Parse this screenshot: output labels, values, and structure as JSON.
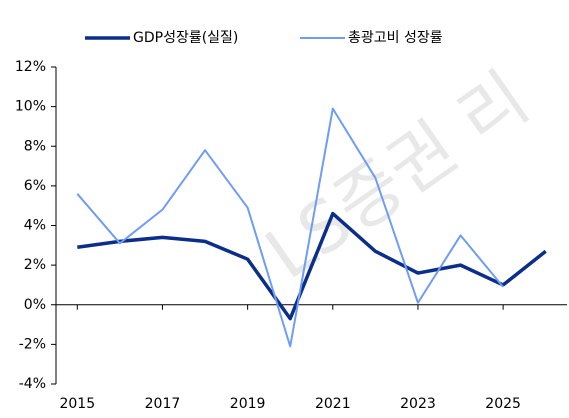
{
  "chart_data": {
    "type": "line",
    "watermark": "LS증권 리",
    "x": [
      2015,
      2016,
      2017,
      2018,
      2019,
      2020,
      2021,
      2022,
      2023,
      2024,
      2025,
      2026
    ],
    "series": [
      {
        "name": "GDP성장률(실질)",
        "color": "#0b2e8a",
        "width": 3.5,
        "values": [
          2.9,
          3.2,
          3.4,
          3.2,
          2.3,
          -0.7,
          4.6,
          2.7,
          1.6,
          2.0,
          1.0,
          2.7
        ]
      },
      {
        "name": "총광고비 성장률",
        "color": "#6f9cf5",
        "width": 2,
        "values": [
          5.6,
          3.1,
          4.8,
          7.8,
          4.9,
          -2.1,
          9.9,
          6.4,
          0.1,
          3.5,
          0.9,
          null
        ]
      }
    ],
    "xlim": [
      2014.5,
      2026.5
    ],
    "xticks": [
      2015,
      2017,
      2019,
      2021,
      2023,
      2025
    ],
    "ylim": [
      -4,
      12
    ],
    "yticks": [
      {
        "value": -4,
        "label": "-4%"
      },
      {
        "value": -2,
        "label": "-2%"
      },
      {
        "value": 0,
        "label": "0%"
      },
      {
        "value": 2,
        "label": "2%"
      },
      {
        "value": 4,
        "label": "4%"
      },
      {
        "value": 6,
        "label": "6%"
      },
      {
        "value": 8,
        "label": "8%"
      },
      {
        "value": 10,
        "label": "10%"
      },
      {
        "value": 12,
        "label": "12%"
      }
    ],
    "legend": "top"
  }
}
